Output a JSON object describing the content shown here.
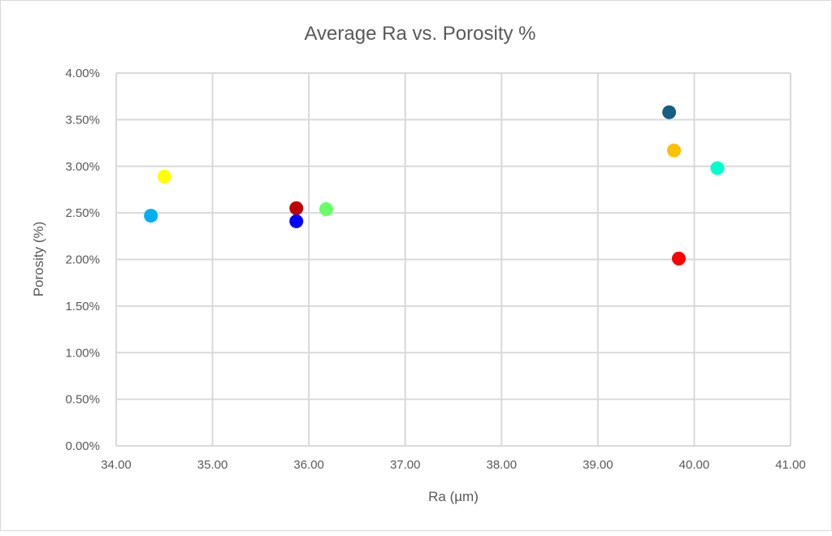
{
  "chart_data": {
    "type": "scatter",
    "title": "Average Ra vs. Porosity %",
    "xlabel": "Ra (µm)",
    "ylabel": "Porosity (%)",
    "xlim": [
      34,
      41
    ],
    "ylim": [
      0,
      4
    ],
    "x_ticks": [
      "34.00",
      "35.00",
      "36.00",
      "37.00",
      "38.00",
      "39.00",
      "40.00",
      "41.00"
    ],
    "y_ticks": [
      "0.00%",
      "0.50%",
      "1.00%",
      "1.50%",
      "2.00%",
      "2.50%",
      "3.00%",
      "3.50%",
      "4.00%"
    ],
    "grid": true,
    "legend": "none",
    "points": [
      {
        "x": 34.36,
        "y": 2.47,
        "color": "#00B0F0"
      },
      {
        "x": 34.5,
        "y": 2.89,
        "color": "#FFFF00"
      },
      {
        "x": 35.87,
        "y": 2.55,
        "color": "#C00000"
      },
      {
        "x": 35.87,
        "y": 2.41,
        "color": "#0000FF"
      },
      {
        "x": 36.18,
        "y": 2.54,
        "color": "#66FF66"
      },
      {
        "x": 39.74,
        "y": 3.58,
        "color": "#156082"
      },
      {
        "x": 39.79,
        "y": 3.17,
        "color": "#FFC000"
      },
      {
        "x": 40.24,
        "y": 2.98,
        "color": "#00FFCC"
      },
      {
        "x": 39.84,
        "y": 2.01,
        "color": "#FF0000"
      }
    ]
  }
}
